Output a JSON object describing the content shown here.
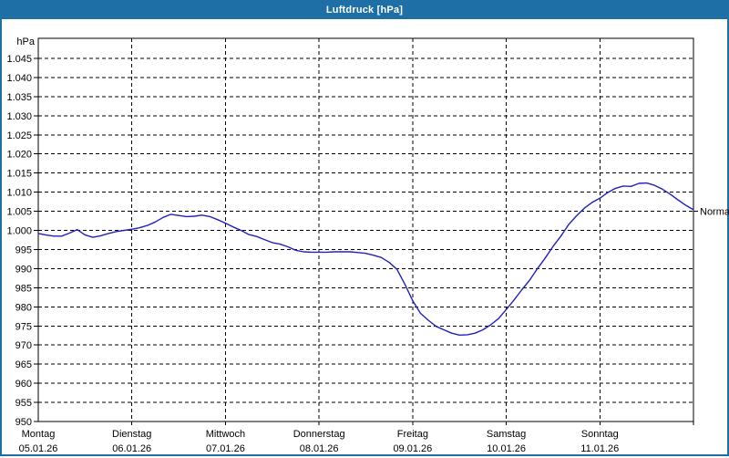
{
  "window": {
    "title": "Luftdruck [hPa]",
    "titlebar_color": "#1d6fa5",
    "border_color": "#1d6fa5"
  },
  "chart_data": {
    "type": "line",
    "title": "Luftdruck [hPa]",
    "ylabel": "hPa",
    "ylim": [
      950,
      1045
    ],
    "ytick_step": 5,
    "ytick_labels": [
      "1.045",
      "1.040",
      "1.035",
      "1.030",
      "1.025",
      "1.020",
      "1.015",
      "1.010",
      "1.005",
      "1.000",
      "995",
      "990",
      "985",
      "980",
      "975",
      "970",
      "965",
      "960",
      "955",
      "950"
    ],
    "grid": "dashed",
    "legend_position": "none",
    "line_color": "#2121c0",
    "days": [
      {
        "name": "Montag",
        "date": "05.01.26"
      },
      {
        "name": "Dienstag",
        "date": "06.01.26"
      },
      {
        "name": "Mittwoch",
        "date": "07.01.26"
      },
      {
        "name": "Donnerstag",
        "date": "08.01.26"
      },
      {
        "name": "Freitag",
        "date": "09.01.26"
      },
      {
        "name": "Samstag",
        "date": "10.01.26"
      },
      {
        "name": "Sonntag",
        "date": "11.01.26"
      }
    ],
    "x_hours_step": 2,
    "x_hours_total": 168,
    "series": [
      {
        "name": "Luftdruck",
        "values": [
          999.2,
          998.8,
          998.5,
          998.5,
          999.3,
          1000.2,
          998.8,
          998.2,
          998.6,
          999.2,
          999.7,
          1000.0,
          1000.3,
          1000.7,
          1001.3,
          1002.2,
          1003.4,
          1004.2,
          1003.9,
          1003.6,
          1003.7,
          1004.0,
          1003.6,
          1002.8,
          1001.9,
          1000.9,
          1000.0,
          998.9,
          998.4,
          997.6,
          996.8,
          996.4,
          995.7,
          994.8,
          994.4,
          994.3,
          994.3,
          994.3,
          994.4,
          994.4,
          994.4,
          994.2,
          994.0,
          993.5,
          992.9,
          991.6,
          989.8,
          985.9,
          981.6,
          978.3,
          976.5,
          974.9,
          974.0,
          973.1,
          972.6,
          972.7,
          973.1,
          974.0,
          975.3,
          976.9,
          979.3,
          981.8,
          984.5,
          987.0,
          990.0,
          992.8,
          995.8,
          998.5,
          1001.5,
          1003.8,
          1005.8,
          1007.3,
          1008.4,
          1009.9,
          1011.0,
          1011.6,
          1011.5,
          1012.3,
          1012.4,
          1011.8,
          1010.8,
          1009.5,
          1008.0,
          1006.6,
          1005.4
        ]
      }
    ],
    "annotations": [
      {
        "label": "Normal",
        "value": 1005,
        "position": "right"
      }
    ]
  }
}
